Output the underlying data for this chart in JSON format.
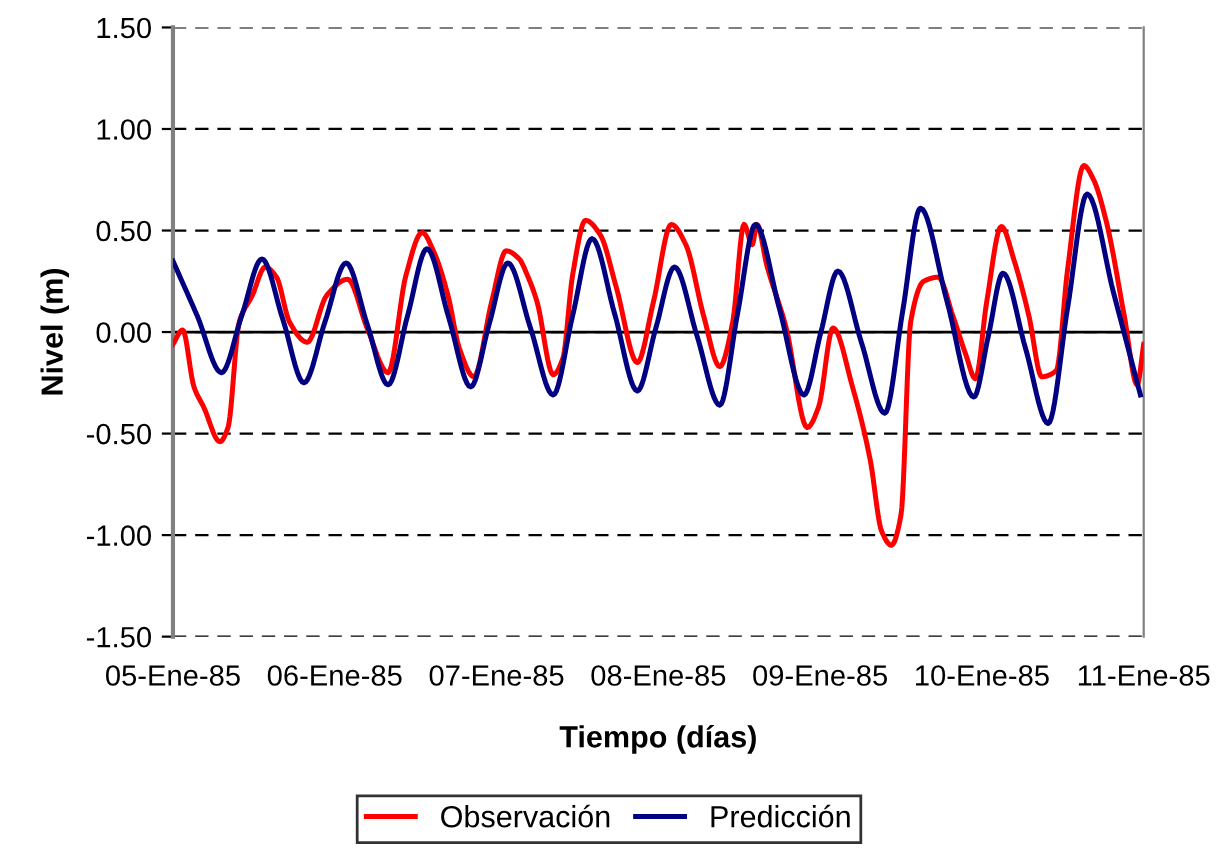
{
  "chart_data": {
    "type": "line",
    "xlabel": "Tiempo (días)",
    "ylabel": "Nivel (m)",
    "xlim": [
      "1985-01-05",
      "1985-01-11"
    ],
    "xticks": [
      {
        "value": "1985-01-05",
        "label": "05-Ene-85"
      },
      {
        "value": "1985-01-06",
        "label": "06-Ene-85"
      },
      {
        "value": "1985-01-07",
        "label": "07-Ene-85"
      },
      {
        "value": "1985-01-08",
        "label": "08-Ene-85"
      },
      {
        "value": "1985-01-09",
        "label": "09-Ene-85"
      },
      {
        "value": "1985-01-10",
        "label": "10-Ene-85"
      },
      {
        "value": "1985-01-11",
        "label": "11-Ene-85"
      }
    ],
    "ylim": [
      -1.5,
      1.5
    ],
    "yticks": [
      {
        "value": -1.5,
        "label": "-1.50"
      },
      {
        "value": -1.0,
        "label": "-1.00"
      },
      {
        "value": -0.5,
        "label": "-0.50"
      },
      {
        "value": 0,
        "label": "0.00"
      },
      {
        "value": 0.5,
        "label": "0.50"
      },
      {
        "value": 1.0,
        "label": "1.00"
      },
      {
        "value": 1.5,
        "label": "1.50"
      }
    ],
    "grid": "y",
    "legend": "bottom",
    "line_style": "solid",
    "marker": "none",
    "ref_lines": [
      {
        "axis": "y",
        "value": 0,
        "color": "#000000",
        "line_style": "solid"
      }
    ],
    "series": [
      {
        "name": "Observación",
        "color": "#ff0000",
        "x": [
          "1985-01-05T00:00",
          "1985-01-05T01:26",
          "1985-01-05T03:07",
          "1985-01-05T04:34",
          "1985-01-05T06:58",
          "1985-01-05T08:10",
          "1985-01-05T09:50",
          "1985-01-05T11:46",
          "1985-01-05T13:41",
          "1985-01-05T15:22",
          "1985-01-05T17:17",
          "1985-01-05T19:55",
          "1985-01-05T22:48",
          "1985-01-06T01:55",
          "1985-01-06T04:48",
          "1985-01-06T07:55",
          "1985-01-06T10:34",
          "1985-01-06T12:58",
          "1985-01-06T14:38",
          "1985-01-06T16:48",
          "1985-01-06T18:29",
          "1985-01-06T20:38",
          "1985-01-06T23:17",
          "1985-01-07T01:26",
          "1985-01-07T03:22",
          "1985-01-07T04:34",
          "1985-01-07T06:00",
          "1985-01-07T08:24",
          "1985-01-07T09:50",
          "1985-01-07T11:17",
          "1985-01-07T13:12",
          "1985-01-07T15:22",
          "1985-01-07T17:46",
          "1985-01-07T20:53",
          "1985-01-07T23:17",
          "1985-01-08T01:55",
          "1985-01-08T04:05",
          "1985-01-08T06:43",
          "1985-01-08T09:07",
          "1985-01-08T11:02",
          "1985-01-08T12:43",
          "1985-01-08T13:55",
          "1985-01-08T14:38",
          "1985-01-08T16:05",
          "1985-01-08T18:58",
          "1985-01-08T22:05",
          "1985-01-08T23:46",
          "1985-01-09T01:55",
          "1985-01-09T04:48",
          "1985-01-09T07:26",
          "1985-01-09T09:07",
          "1985-01-09T10:34",
          "1985-01-09T12:00",
          "1985-01-09T13:26",
          "1985-01-09T15:22",
          "1985-01-09T17:31",
          "1985-01-09T19:41",
          "1985-01-09T21:36",
          "1985-01-09T23:02",
          "1985-01-10T00:43",
          "1985-01-10T02:53",
          "1985-01-10T04:48",
          "1985-01-10T06:58",
          "1985-01-10T08:53",
          "1985-01-10T11:02",
          "1985-01-10T12:43",
          "1985-01-10T15:07",
          "1985-01-10T16:34",
          "1985-01-10T18:29",
          "1985-01-10T21:07",
          "1985-01-10T23:02",
          "1985-01-11T00:00"
        ],
        "values": [
          -0.06,
          0.01,
          -0.27,
          -0.37,
          -0.54,
          -0.47,
          0.05,
          0.18,
          0.32,
          0.27,
          0.05,
          -0.05,
          0.18,
          0.26,
          0.02,
          -0.2,
          0.28,
          0.49,
          0.4,
          0.18,
          -0.08,
          -0.22,
          0.15,
          0.4,
          0.36,
          0.28,
          0.15,
          -0.21,
          -0.13,
          0.28,
          0.55,
          0.48,
          0.22,
          -0.15,
          0.15,
          0.53,
          0.43,
          0.08,
          -0.17,
          0.05,
          0.53,
          0.43,
          0.53,
          0.33,
          0.02,
          -0.47,
          -0.37,
          0.02,
          -0.27,
          -0.63,
          -0.98,
          -1.05,
          -0.9,
          0.05,
          0.25,
          0.27,
          0.08,
          -0.11,
          -0.23,
          0.15,
          0.52,
          0.35,
          0.08,
          -0.22,
          -0.19,
          0.31,
          0.82,
          0.75,
          0.54,
          0.08,
          -0.26,
          -0.06
        ]
      },
      {
        "name": "Predicción",
        "color": "#000080",
        "x": [
          "1985-01-05T00:00",
          "1985-01-05T03:36",
          "1985-01-05T07:12",
          "1985-01-05T10:12",
          "1985-01-05T13:12",
          "1985-01-05T16:19",
          "1985-01-05T19:26",
          "1985-01-05T22:33",
          "1985-01-06T01:41",
          "1985-01-06T04:48",
          "1985-01-06T07:55",
          "1985-01-06T10:48",
          "1985-01-06T13:41",
          "1985-01-06T16:55",
          "1985-01-06T20:10",
          "1985-01-06T22:55",
          "1985-01-07T01:41",
          "1985-01-07T05:02",
          "1985-01-07T08:24",
          "1985-01-07T11:17",
          "1985-01-07T14:10",
          "1985-01-07T17:31",
          "1985-01-07T20:53",
          "1985-01-07T23:38",
          "1985-01-08T02:24",
          "1985-01-08T05:45",
          "1985-01-08T09:07",
          "1985-01-08T11:45",
          "1985-01-08T14:24",
          "1985-01-08T18:00",
          "1985-01-08T21:36",
          "1985-01-09T00:07",
          "1985-01-09T02:38",
          "1985-01-09T06:07",
          "1985-01-09T09:36",
          "1985-01-09T12:14",
          "1985-01-09T14:53",
          "1985-01-09T18:50",
          "1985-01-09T22:48",
          "1985-01-10T00:57",
          "1985-01-10T03:07",
          "1985-01-10T06:28",
          "1985-01-10T09:50",
          "1985-01-10T12:43",
          "1985-01-10T15:36",
          "1985-01-10T19:33",
          "1985-01-10T23:31"
        ],
        "values": [
          0.35,
          0.08,
          -0.2,
          0.08,
          0.36,
          0.06,
          -0.25,
          0.05,
          0.34,
          0.04,
          -0.26,
          0.08,
          0.41,
          0.07,
          -0.27,
          0.04,
          0.34,
          0.02,
          -0.31,
          0.08,
          0.46,
          0.09,
          -0.29,
          0.02,
          0.32,
          -0.02,
          -0.36,
          0.09,
          0.53,
          0.11,
          -0.31,
          0.0,
          0.3,
          -0.05,
          -0.4,
          0.1,
          0.61,
          0.15,
          -0.32,
          -0.02,
          0.29,
          -0.08,
          -0.45,
          0.12,
          0.68,
          0.19,
          -0.31
        ]
      }
    ]
  }
}
